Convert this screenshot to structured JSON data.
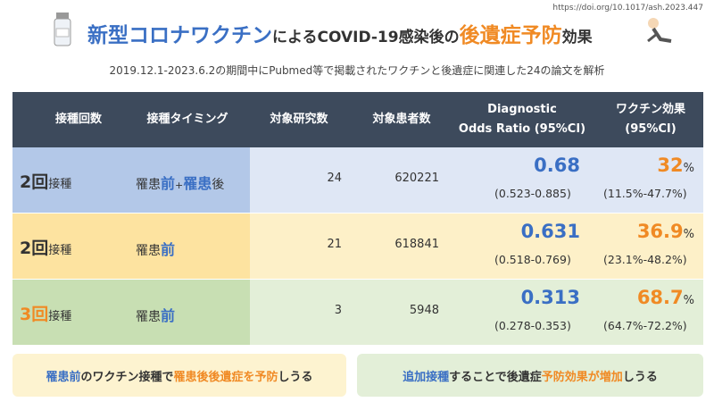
{
  "source": "https://doi.org/10.1017/ash.2023.447",
  "title": [
    "新型コロナワクチン",
    "による",
    "COVID-19感染後の",
    "後遺症予防",
    "効果"
  ],
  "subtitle": "2019.12.1-2023.6.2の期間中にPubmed等で掲載されたワクチンと後遺症に関連した24の論文を解析",
  "table": {
    "headers": [
      "接種回数",
      "接種タイミング",
      "対象研究数",
      "対象患者数",
      [
        "Diagnostic",
        "Odds Ratio (95%CI)"
      ],
      [
        "ワクチン効果",
        "(95%CI)"
      ]
    ],
    "rows": [
      {
        "dose": [
          2,
          "回",
          "接種"
        ],
        "timing": [
          "罹患",
          "前",
          "+",
          "罹患",
          "後"
        ],
        "studies": 24,
        "patients": 620221,
        "dor": 0.68,
        "dor_ci": "(0.523-0.885)",
        "effect": [
          32,
          "%"
        ],
        "effect_ci": "(11.5%-47.7%)"
      },
      {
        "dose": [
          2,
          "回",
          "接種"
        ],
        "timing": [
          "罹患",
          "前"
        ],
        "studies": 21,
        "patients": 618841,
        "dor": 0.631,
        "dor_ci": "(0.518-0.769)",
        "effect": [
          36.9,
          "%"
        ],
        "effect_ci": "(23.1%-48.2%)"
      },
      {
        "dose": [
          3,
          "回",
          "接種"
        ],
        "timing": [
          "罹患",
          "前"
        ],
        "studies": 3,
        "patients": 5948,
        "dor": 0.313,
        "dor_ci": "(0.278-0.353)",
        "effect": [
          68.7,
          "%"
        ],
        "effect_ci": "(64.7%-72.2%)"
      }
    ]
  },
  "conclusions": [
    [
      "罹患",
      "前",
      "のワクチン接種で",
      "罹患後後遺症を予防",
      "しうる"
    ],
    [
      "追加接種",
      "することで後遺症",
      "予防効果が増加",
      "しうる"
    ]
  ]
}
